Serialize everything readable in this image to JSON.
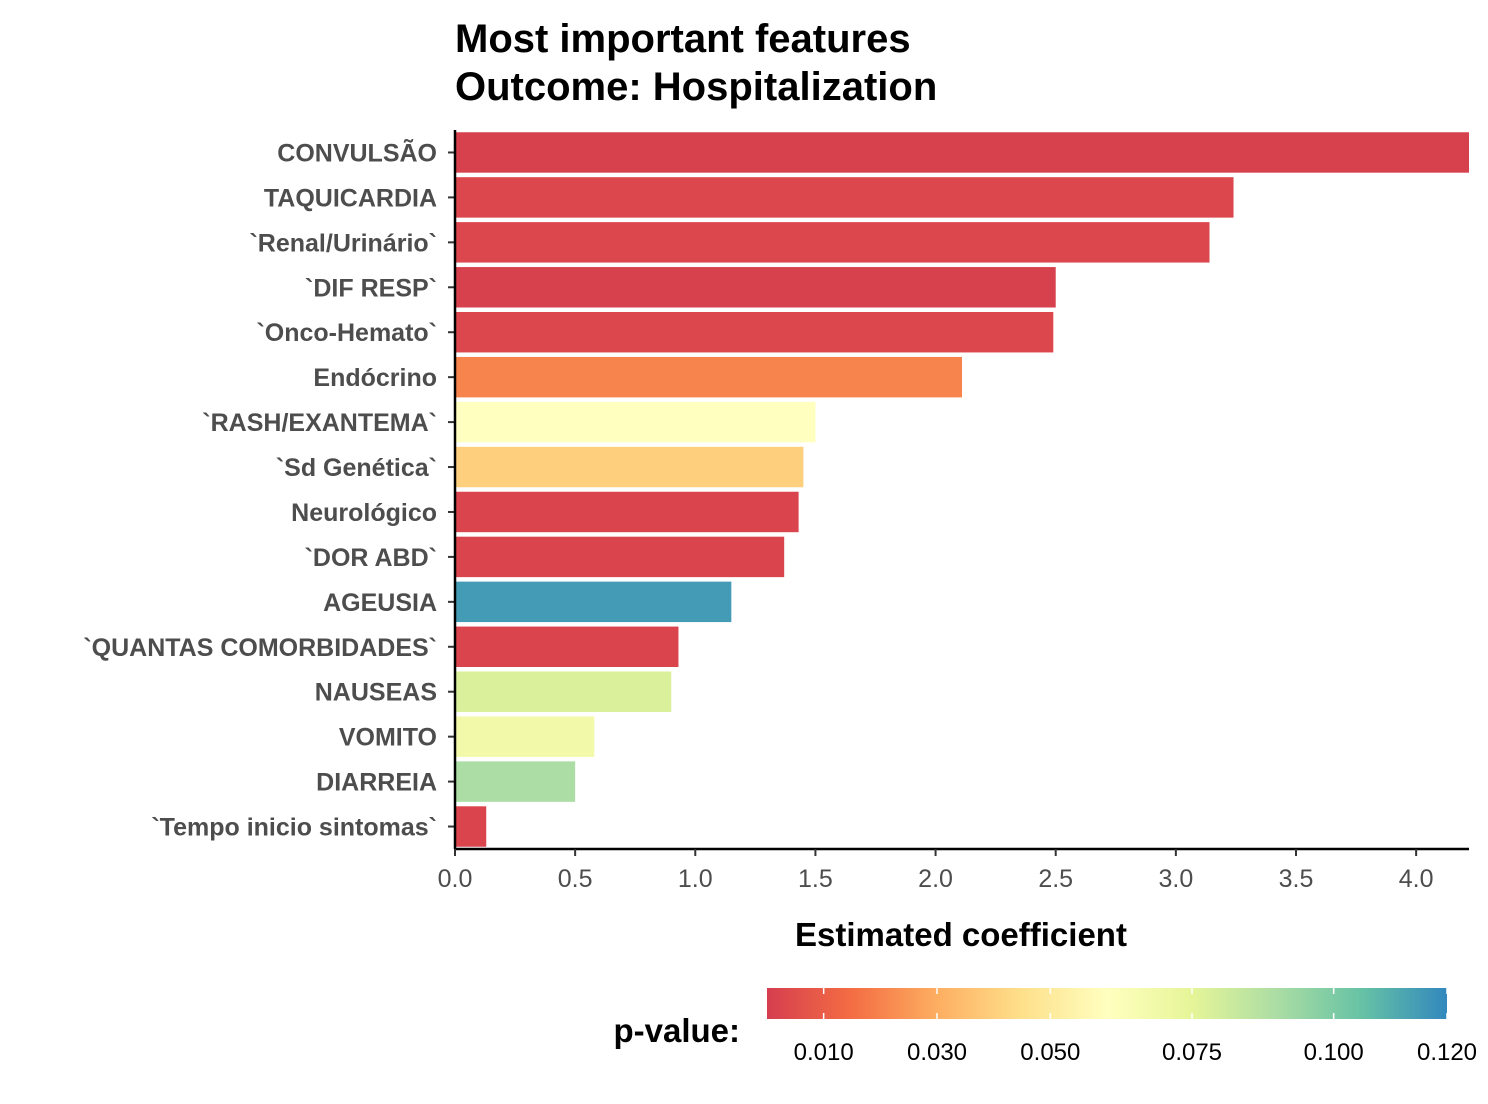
{
  "chart_data": {
    "type": "bar",
    "orientation": "horizontal",
    "title": [
      "Most important features",
      "Outcome: Hospitalization"
    ],
    "xlabel": "Estimated coefficient",
    "ylabel": "",
    "xlim": [
      0,
      4.22
    ],
    "xticks": [
      "0.0",
      "0.5",
      "1.0",
      "1.5",
      "2.0",
      "2.5",
      "3.0",
      "3.5",
      "4.0"
    ],
    "categories": [
      "CONVULSÃO",
      "TAQUICARDIA",
      "`Renal/Urinário`",
      "`DIF RESP`",
      "`Onco-Hemato`",
      "Endócrino",
      "`RASH/EXANTEMA`",
      "`Sd Genética`",
      "Neurológico",
      "`DOR ABD`",
      "AGEUSIA",
      "`QUANTAS COMORBIDADES`",
      "NAUSEAS",
      "VOMITO",
      "DIARREIA",
      "`Tempo inicio sintomas`"
    ],
    "values": [
      4.22,
      3.24,
      3.14,
      2.5,
      2.49,
      2.11,
      1.5,
      1.45,
      1.43,
      1.37,
      1.15,
      0.93,
      0.9,
      0.58,
      0.5,
      0.13
    ],
    "p_values": [
      0.001,
      0.003,
      0.003,
      0.001,
      0.003,
      0.02,
      0.06,
      0.04,
      0.002,
      0.002,
      0.115,
      0.002,
      0.078,
      0.068,
      0.09,
      0.002
    ],
    "legend": {
      "title": "p-value:",
      "position": "bottom",
      "range": [
        0.0,
        0.12
      ],
      "ticks": [
        0.01,
        0.03,
        0.05,
        0.075,
        0.1,
        0.12
      ],
      "tick_labels": [
        "0.010",
        "0.030",
        "0.050",
        "0.075",
        "0.100",
        "0.120"
      ],
      "colors": [
        "#d53e4f",
        "#f46d43",
        "#fdae61",
        "#fee08b",
        "#ffffbf",
        "#e6f598",
        "#abdda4",
        "#66c2a5",
        "#3288bd"
      ]
    },
    "grid": false
  }
}
